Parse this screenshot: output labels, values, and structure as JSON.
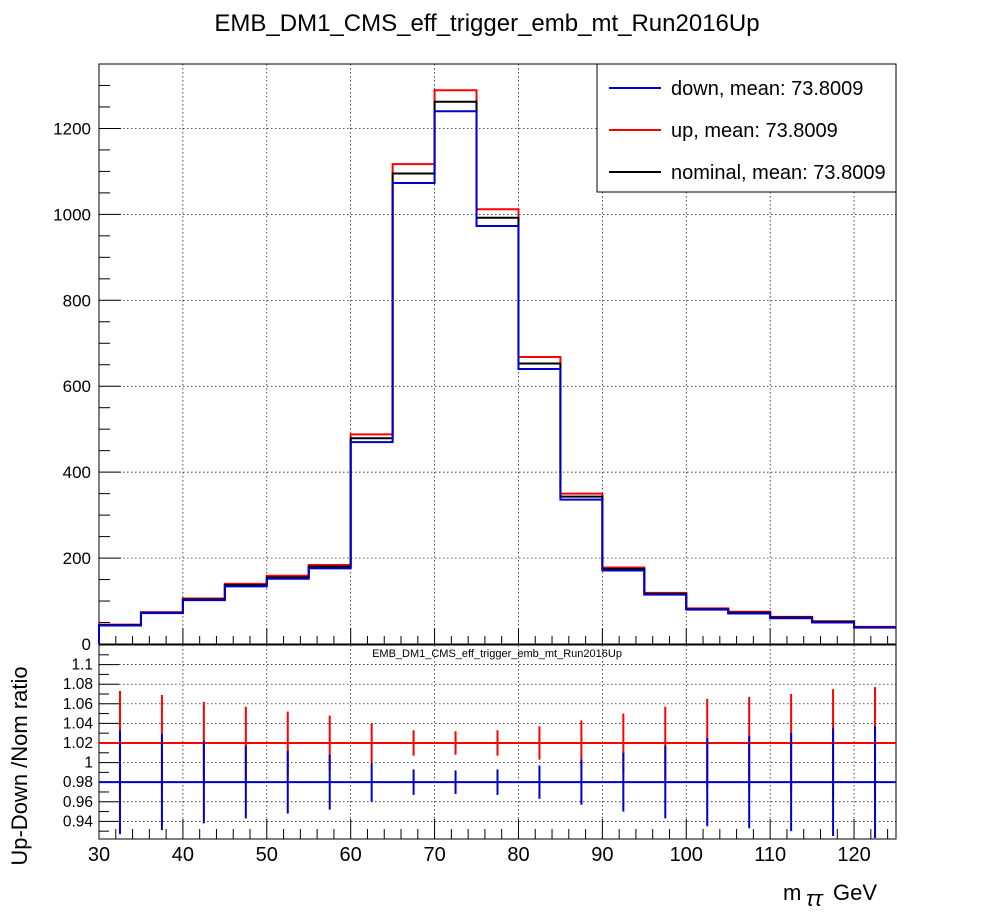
{
  "title": "EMB_DM1_CMS_eff_trigger_emb_mt_Run2016Up",
  "lower_title": "EMB_DM1_CMS_eff_trigger_emb_mt_Run2016Up",
  "colors": {
    "down": "#0000cc",
    "up": "#ff0000",
    "nominal": "#000000"
  },
  "legend": [
    {
      "key": "down",
      "label": "down, mean: 73.8009"
    },
    {
      "key": "up",
      "label": "up, mean: 73.8009"
    },
    {
      "key": "nominal",
      "label": "nominal, mean: 73.8009"
    }
  ],
  "chart_data": [
    {
      "type": "line",
      "subtype": "step-histogram",
      "bin_edges": [
        30,
        35,
        40,
        45,
        50,
        55,
        60,
        65,
        70,
        75,
        80,
        85,
        90,
        95,
        100,
        105,
        110,
        115,
        120,
        125
      ],
      "series": [
        {
          "name": "down, mean: 73.8009",
          "key": "down",
          "values": [
            43,
            72,
            102,
            134,
            152,
            176,
            470,
            1073,
            1240,
            973,
            640,
            336,
            171,
            115,
            80,
            71,
            60,
            50,
            38
          ]
        },
        {
          "name": "up, mean: 73.8009",
          "key": "up",
          "values": [
            45,
            74,
            106,
            140,
            159,
            184,
            488,
            1117,
            1289,
            1012,
            668,
            350,
            178,
            119,
            83,
            75,
            63,
            53,
            40
          ]
        },
        {
          "name": "nominal, mean: 73.8009",
          "key": "nominal",
          "values": [
            44,
            73,
            104,
            137,
            155,
            180,
            479,
            1095,
            1262,
            992,
            653,
            343,
            175,
            117,
            81,
            73,
            62,
            52,
            39
          ]
        }
      ],
      "xlim": [
        30,
        125
      ],
      "ylim": [
        0,
        1350
      ],
      "yticks": [
        0,
        200,
        400,
        600,
        800,
        1000,
        1200
      ],
      "grid": true,
      "legend_position": "top-right"
    },
    {
      "type": "scatter",
      "subtype": "ratio-with-error-bars",
      "x": [
        32.5,
        37.5,
        42.5,
        47.5,
        52.5,
        57.5,
        62.5,
        67.5,
        72.5,
        77.5,
        82.5,
        87.5,
        92.5,
        97.5,
        102.5,
        107.5,
        112.5,
        117.5,
        122.5
      ],
      "series": [
        {
          "key": "up",
          "ratio": 1.02,
          "errors": [
            0.053,
            0.049,
            0.042,
            0.037,
            0.032,
            0.028,
            0.02,
            0.013,
            0.012,
            0.013,
            0.017,
            0.023,
            0.03,
            0.037,
            0.045,
            0.047,
            0.05,
            0.055,
            0.057
          ]
        },
        {
          "key": "down",
          "ratio": 0.98,
          "errors": [
            0.053,
            0.049,
            0.042,
            0.037,
            0.032,
            0.028,
            0.02,
            0.013,
            0.012,
            0.013,
            0.017,
            0.023,
            0.03,
            0.037,
            0.045,
            0.047,
            0.05,
            0.055,
            0.057
          ]
        }
      ],
      "ylabel": "Up-Down /Nom ratio",
      "xlabel": "m_{ττ} GeV",
      "xticks": [
        30,
        40,
        50,
        60,
        70,
        80,
        90,
        100,
        110,
        120
      ],
      "yticks": [
        0.94,
        0.96,
        0.98,
        1,
        1.02,
        1.04,
        1.06,
        1.08,
        1.1
      ],
      "ylim": [
        0.922,
        1.12
      ],
      "xlim": [
        30,
        125
      ],
      "grid": true
    }
  ],
  "xlabel_main": "m",
  "xlabel_sub": "ττ",
  "xlabel_unit": "GeV",
  "ylabel_ratio": "Up-Down /Nom ratio"
}
